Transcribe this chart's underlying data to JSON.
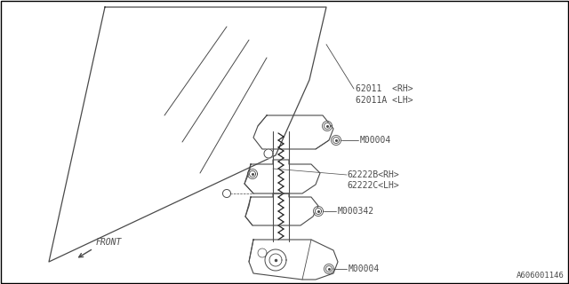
{
  "bg_color": "#ffffff",
  "border_color": "#000000",
  "line_color": "#4a4a4a",
  "text_color": "#4a4a4a",
  "fig_width": 6.4,
  "fig_height": 3.2,
  "dpi": 100,
  "diagram_id": "A606001146",
  "labels": {
    "part1": "62011  <RH>",
    "part1b": "62011A <LH>",
    "part2": "62222B<RH>",
    "part2b": "62222C<LH>",
    "bolt1": "M00004",
    "bolt2": "M000342",
    "bolt3": "M00004",
    "front": "FRONT"
  },
  "font_size": 7.0
}
